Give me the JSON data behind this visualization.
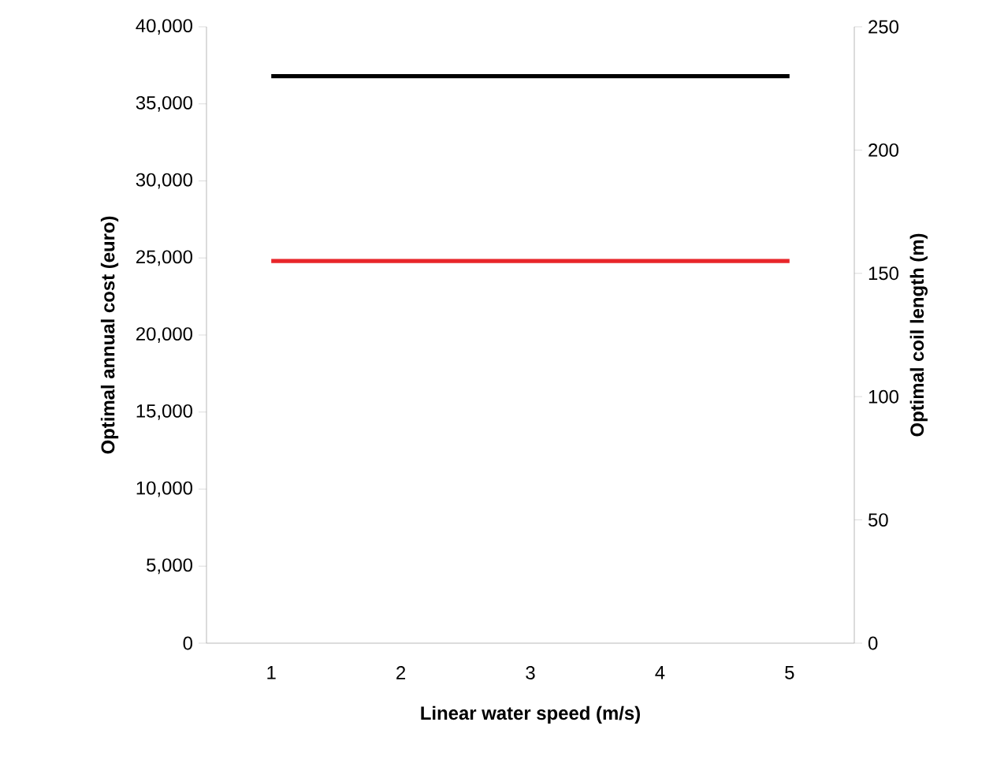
{
  "chart_data": {
    "type": "line",
    "xlabel": "Linear water speed (m/s)",
    "ylabel": "Optimal annual cost (euro)",
    "y2label": "Optimal coil length (m)",
    "categories": [
      "1",
      "2",
      "3",
      "4",
      "5"
    ],
    "series": [
      {
        "color": "#000000",
        "values": [
          36800,
          36800,
          36800,
          36800,
          36800
        ]
      },
      {
        "color": "#e8262a",
        "axis": "y2",
        "values": [
          155,
          155,
          155,
          155,
          155
        ]
      }
    ],
    "ylim": [
      0,
      40000
    ],
    "yticks": [
      {
        "value": 0,
        "label": "0"
      },
      {
        "value": 5000,
        "label": "5,000"
      },
      {
        "value": 10000,
        "label": "10,000"
      },
      {
        "value": 15000,
        "label": "15,000"
      },
      {
        "value": 20000,
        "label": "20,000"
      },
      {
        "value": 25000,
        "label": "25,000"
      },
      {
        "value": 30000,
        "label": "30,000"
      },
      {
        "value": 35000,
        "label": "35,000"
      },
      {
        "value": 40000,
        "label": "40,000"
      }
    ],
    "y2lim": [
      0,
      250
    ],
    "y2ticks": [
      0,
      50,
      100,
      150,
      200,
      250
    ],
    "grid": false,
    "legend": false,
    "marker": "none",
    "line_style": "solid"
  }
}
